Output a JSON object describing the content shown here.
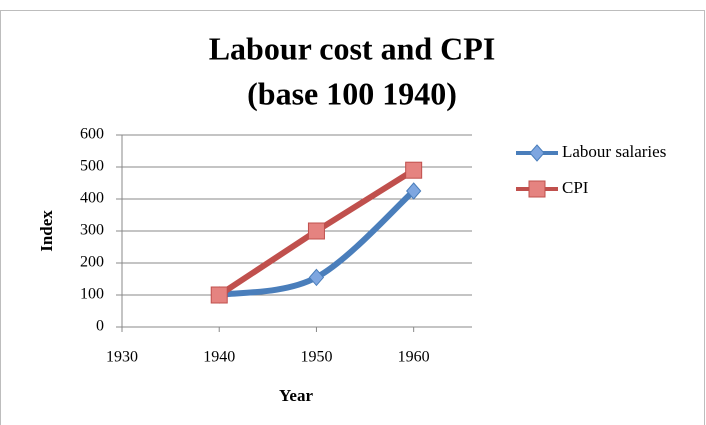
{
  "chart_data": {
    "type": "line",
    "title": [
      "Labour cost and CPI",
      "(base 100 1940)"
    ],
    "x_label": "Year",
    "y_label": "Index",
    "x": [
      1940,
      1950,
      1960
    ],
    "series": [
      {
        "name": "Labour salaries",
        "color": "#4a7ebb",
        "marker": "diamond",
        "smooth": true,
        "values": [
          100,
          155,
          425
        ]
      },
      {
        "name": "CPI",
        "color": "#c0504d",
        "marker": "square",
        "smooth": false,
        "values": [
          100,
          300,
          490
        ]
      }
    ],
    "xlim": [
      1930,
      1966
    ],
    "xticks": [
      1930,
      1940,
      1950,
      1960
    ],
    "ylim": [
      0,
      600
    ],
    "yticks": [
      0,
      100,
      200,
      300,
      400,
      500,
      600
    ],
    "grid": true,
    "legend": "right"
  }
}
